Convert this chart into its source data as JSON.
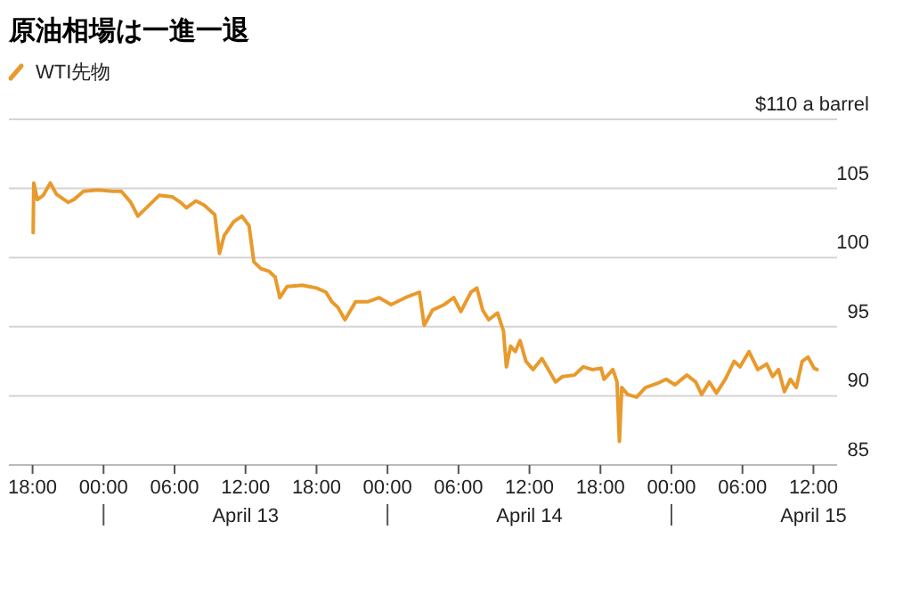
{
  "chart_data": {
    "type": "line",
    "title": "原油相場は一進一退",
    "legend": "top left",
    "grid": "y",
    "xlim": [
      "--04-12T16:00",
      "--04-15T14:00"
    ],
    "xticks": [
      {
        "value": "--04-12T18:00",
        "label": "18:00"
      },
      {
        "value": "--04-13T00:00",
        "label": "00:00"
      },
      {
        "value": "--04-13T06:00",
        "label": "06:00"
      },
      {
        "value": "--04-13T12:00",
        "label": "12:00"
      },
      {
        "value": "--04-13T18:00",
        "label": "18:00"
      },
      {
        "value": "--04-14T00:00",
        "label": "00:00"
      },
      {
        "value": "--04-14T06:00",
        "label": "06:00"
      },
      {
        "value": "--04-14T12:00",
        "label": "12:00"
      },
      {
        "value": "--04-14T18:00",
        "label": "18:00"
      },
      {
        "value": "--04-15T00:00",
        "label": "00:00"
      },
      {
        "value": "--04-15T06:00",
        "label": "06:00"
      },
      {
        "value": "--04-15T12:00",
        "label": "12:00"
      }
    ],
    "ylim": [
      85,
      110
    ],
    "yticks": [
      85,
      90,
      95,
      100,
      105,
      {
        "value": 110,
        "label": "$110 a barrel"
      }
    ],
    "annotations": [
      "April 13",
      "April 14",
      "April 15"
    ],
    "series": [
      {
        "name": "WTI先物",
        "color": "#e89a2c",
        "x": [
          "--04-12T18:03",
          "--04-12T18:06",
          "--04-12T18:24",
          "--04-12T18:54",
          "--04-12T19:30",
          "--04-12T20:00",
          "--04-12T21:00",
          "--04-12T21:30",
          "--04-12T22:18",
          "--04-12T23:30",
          "--04-13T00:48",
          "--04-13T01:30",
          "--04-13T02:18",
          "--04-13T02:54",
          "--04-13T03:30",
          "--04-13T04:42",
          "--04-13T05:48",
          "--04-13T06:30",
          "--04-13T07:00",
          "--04-13T07:48",
          "--04-13T08:30",
          "--04-13T09:24",
          "--04-13T09:48",
          "--04-13T10:12",
          "--04-13T11:00",
          "--04-13T11:42",
          "--04-13T12:18",
          "--04-13T12:42",
          "--04-13T13:18",
          "--04-13T14:00",
          "--04-13T14:30",
          "--04-13T14:54",
          "--04-13T15:30",
          "--04-13T16:48",
          "--04-13T18:00",
          "--04-13T18:48",
          "--04-13T19:18",
          "--04-13T19:48",
          "--04-13T20:24",
          "--04-13T21:18",
          "--04-13T22:18",
          "--04-13T23:18",
          "--04-14T00:18",
          "--04-14T01:30",
          "--04-14T02:42",
          "--04-14T03:06",
          "--04-14T03:48",
          "--04-14T04:48",
          "--04-14T05:36",
          "--04-14T06:12",
          "--04-14T07:03",
          "--04-14T07:33",
          "--04-14T08:03",
          "--04-14T08:33",
          "--04-14T09:18",
          "--04-14T09:48",
          "--04-14T10:03",
          "--04-14T10:24",
          "--04-14T10:48",
          "--04-14T11:12",
          "--04-14T11:42",
          "--04-14T12:18",
          "--04-14T13:03",
          "--04-14T13:48",
          "--04-14T14:12",
          "--04-14T14:48",
          "--04-14T15:48",
          "--04-14T16:33",
          "--04-14T17:18",
          "--04-14T18:03",
          "--04-14T18:18",
          "--04-14T19:03",
          "--04-14T19:24",
          "--04-14T19:36",
          "--04-14T19:48",
          "--04-14T20:18",
          "--04-14T21:03",
          "--04-14T21:48",
          "--04-14T22:48",
          "--04-14T23:33",
          "--04-15T00:18",
          "--04-15T01:18",
          "--04-15T02:03",
          "--04-15T02:33",
          "--04-15T03:12",
          "--04-15T03:48",
          "--04-15T04:33",
          "--04-15T05:18",
          "--04-15T05:48",
          "--04-15T06:33",
          "--04-15T07:18",
          "--04-15T08:03",
          "--04-15T08:33",
          "--04-15T09:03",
          "--04-15T09:33",
          "--04-15T10:03",
          "--04-15T10:33",
          "--04-15T11:03",
          "--04-15T11:33",
          "--04-15T12:03",
          "--04-15T12:18"
        ],
        "values": [
          101.8,
          105.4,
          104.2,
          104.5,
          105.4,
          104.6,
          104.0,
          104.2,
          104.8,
          104.9,
          104.8,
          104.8,
          104.0,
          103.0,
          103.5,
          104.5,
          104.4,
          104.0,
          103.6,
          104.1,
          103.8,
          103.1,
          100.3,
          101.6,
          102.6,
          103.0,
          102.3,
          99.7,
          99.2,
          99.0,
          98.6,
          97.1,
          97.9,
          98.0,
          97.8,
          97.5,
          96.8,
          96.4,
          95.5,
          96.8,
          96.8,
          97.1,
          96.6,
          97.1,
          97.5,
          95.1,
          96.2,
          96.6,
          97.1,
          96.1,
          97.5,
          97.8,
          96.2,
          95.5,
          96.0,
          94.7,
          92.1,
          93.6,
          93.2,
          94.0,
          92.5,
          91.9,
          92.7,
          91.6,
          91.0,
          91.4,
          91.5,
          92.1,
          91.9,
          92.0,
          91.2,
          91.9,
          91.0,
          86.7,
          90.6,
          90.1,
          89.9,
          90.6,
          90.9,
          91.2,
          90.8,
          91.5,
          91.0,
          90.1,
          91.0,
          90.2,
          91.2,
          92.5,
          92.1,
          93.2,
          91.9,
          92.3,
          91.4,
          91.9,
          90.3,
          91.2,
          90.6,
          92.5,
          92.8,
          92.0,
          91.9
        ]
      }
    ]
  }
}
